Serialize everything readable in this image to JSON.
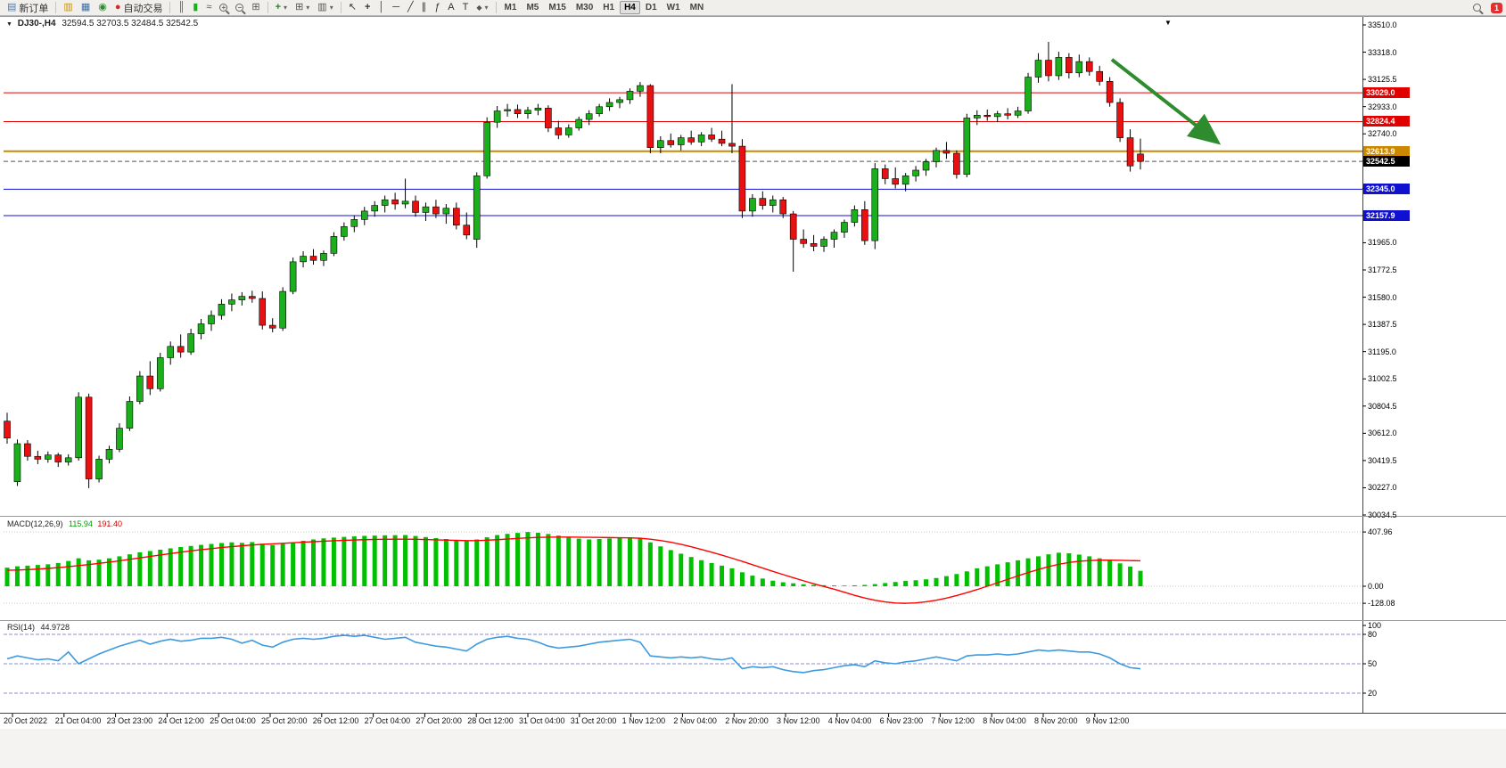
{
  "toolbar": {
    "new_order": "新订单",
    "autotrading": "自动交易",
    "timeframes": [
      "M1",
      "M5",
      "M15",
      "M30",
      "H1",
      "H4",
      "D1",
      "W1",
      "MN"
    ],
    "active_timeframe": "H4",
    "notification_badge": "1"
  },
  "icons": {
    "new_order": "▤",
    "chart_profile": "▥",
    "market_watch": "▦",
    "navigator": "◉",
    "autotrading_dot": "●",
    "bar_chart": "║",
    "candle_chart": "▮",
    "line_chart": "≈",
    "zoom_in_sign": "+",
    "zoom_out_sign": "−",
    "tile_windows": "⊞",
    "indicators_plus": "+",
    "dropdown": "▾",
    "cursor": "↖",
    "crosshair": "+",
    "vertical_line": "│",
    "horizontal_line": "─",
    "trendline": "╱",
    "channel": "∥",
    "fibonacci": "ƒ",
    "text_tool": "A",
    "label_tool": "T",
    "shapes": "◆",
    "symbol_dropdown": "▼",
    "scroll_marker": "▼"
  },
  "chart": {
    "symbol_period": "DJ30-,H4",
    "ohlc_text": "32594.5 32703.5 32484.5 32542.5",
    "macd_label": "MACD(12,26,9)",
    "macd_main_value": "115.94",
    "macd_signal_value": "191.40",
    "rsi_label": "RSI(14)",
    "rsi_value": "44.9728"
  },
  "chart_data": {
    "type": "candlestick",
    "symbol": "DJ30-",
    "timeframe": "H4",
    "last_candle": {
      "open": 32594.5,
      "high": 32703.5,
      "low": 32484.5,
      "close": 32542.5
    },
    "colors": {
      "up": "#1caf1c",
      "down": "#e81010",
      "wick": "#000000",
      "macd_hist": "#00c000",
      "macd_signal": "#ff0000",
      "rsi": "#3e9ade",
      "resistance": "#e00000",
      "key_level": "#cc8800",
      "support": "#1010d0"
    },
    "price_axis": {
      "max": 33510.0,
      "min": 30034.5,
      "labels": [
        "33510.0",
        "33318.0",
        "33125.5",
        "32933.0",
        "32740.0",
        "32548.0",
        "32355.0",
        "32162.5",
        "31965.0",
        "31772.5",
        "31580.0",
        "31387.5",
        "31195.0",
        "31002.5",
        "30804.5",
        "30612.0",
        "30419.5",
        "30227.0",
        "30034.5"
      ]
    },
    "hlines": [
      {
        "price": 33029.0,
        "label": "33029.0",
        "color": "#e00000",
        "width": 1
      },
      {
        "price": 32824.4,
        "label": "32824.4",
        "color": "#e00000",
        "width": 1
      },
      {
        "price": 32613.9,
        "label": "32613.9",
        "color": "#cc8800",
        "width": 2
      },
      {
        "price": 32345.0,
        "label": "32345.0",
        "color": "#1010d0",
        "width": 1
      },
      {
        "price": 32157.9,
        "label": "32157.9",
        "color": "#1010d0",
        "width": 1
      }
    ],
    "current_price": {
      "value": 32542.5,
      "label": "32542.5",
      "color": "#000000"
    },
    "candles": [
      [
        30700,
        30760,
        30540,
        30580
      ],
      [
        30270,
        30570,
        30240,
        30540
      ],
      [
        30540,
        30565,
        30420,
        30450
      ],
      [
        30450,
        30490,
        30395,
        30430
      ],
      [
        30430,
        30485,
        30405,
        30460
      ],
      [
        30460,
        30475,
        30375,
        30410
      ],
      [
        30410,
        30465,
        30385,
        30440
      ],
      [
        30440,
        30905,
        30420,
        30870
      ],
      [
        30870,
        30895,
        30225,
        30290
      ],
      [
        30290,
        30455,
        30265,
        30430
      ],
      [
        30430,
        30525,
        30400,
        30500
      ],
      [
        30500,
        30685,
        30480,
        30650
      ],
      [
        30650,
        30875,
        30630,
        30840
      ],
      [
        30840,
        31055,
        30820,
        31020
      ],
      [
        31020,
        31125,
        30885,
        30930
      ],
      [
        30930,
        31185,
        30910,
        31150
      ],
      [
        31150,
        31265,
        31100,
        31230
      ],
      [
        31230,
        31315,
        31150,
        31190
      ],
      [
        31190,
        31355,
        31170,
        31320
      ],
      [
        31320,
        31425,
        31280,
        31390
      ],
      [
        31390,
        31485,
        31340,
        31450
      ],
      [
        31450,
        31565,
        31420,
        31530
      ],
      [
        31530,
        31605,
        31480,
        31560
      ],
      [
        31560,
        31615,
        31520,
        31585
      ],
      [
        31585,
        31625,
        31540,
        31570
      ],
      [
        31570,
        31620,
        31350,
        31380
      ],
      [
        31380,
        31430,
        31330,
        31360
      ],
      [
        31360,
        31650,
        31340,
        31620
      ],
      [
        31620,
        31860,
        31600,
        31830
      ],
      [
        31830,
        31905,
        31790,
        31870
      ],
      [
        31870,
        31920,
        31810,
        31840
      ],
      [
        31840,
        31910,
        31800,
        31890
      ],
      [
        31890,
        32040,
        31870,
        32010
      ],
      [
        32010,
        32110,
        31980,
        32080
      ],
      [
        32080,
        32160,
        32040,
        32130
      ],
      [
        32130,
        32220,
        32090,
        32190
      ],
      [
        32190,
        32260,
        32150,
        32230
      ],
      [
        32230,
        32300,
        32180,
        32270
      ],
      [
        32270,
        32320,
        32200,
        32240
      ],
      [
        32240,
        32420,
        32210,
        32260
      ],
      [
        32260,
        32300,
        32150,
        32180
      ],
      [
        32180,
        32250,
        32120,
        32220
      ],
      [
        32220,
        32270,
        32140,
        32170
      ],
      [
        32170,
        32240,
        32100,
        32210
      ],
      [
        32210,
        32250,
        32060,
        32090
      ],
      [
        32090,
        32180,
        31990,
        32020
      ],
      [
        31990,
        32465,
        31930,
        32440
      ],
      [
        32440,
        32855,
        32420,
        32820
      ],
      [
        32820,
        32935,
        32780,
        32900
      ],
      [
        32900,
        32950,
        32860,
        32910
      ],
      [
        32910,
        32945,
        32850,
        32880
      ],
      [
        32880,
        32930,
        32845,
        32905
      ],
      [
        32905,
        32950,
        32870,
        32920
      ],
      [
        32920,
        32940,
        32750,
        32780
      ],
      [
        32780,
        32830,
        32700,
        32730
      ],
      [
        32730,
        32805,
        32710,
        32780
      ],
      [
        32780,
        32860,
        32760,
        32840
      ],
      [
        32840,
        32905,
        32800,
        32880
      ],
      [
        32880,
        32950,
        32860,
        32930
      ],
      [
        32930,
        32990,
        32900,
        32960
      ],
      [
        32960,
        33000,
        32920,
        32980
      ],
      [
        32980,
        33060,
        32950,
        33040
      ],
      [
        33040,
        33105,
        33000,
        33080
      ],
      [
        33080,
        33090,
        32600,
        32640
      ],
      [
        32640,
        32720,
        32600,
        32690
      ],
      [
        32690,
        32740,
        32640,
        32660
      ],
      [
        32660,
        32730,
        32620,
        32710
      ],
      [
        32710,
        32760,
        32660,
        32680
      ],
      [
        32680,
        32750,
        32650,
        32730
      ],
      [
        32730,
        32780,
        32680,
        32700
      ],
      [
        32700,
        32760,
        32650,
        32670
      ],
      [
        32670,
        33090,
        32600,
        32650
      ],
      [
        32650,
        32700,
        32140,
        32190
      ],
      [
        32190,
        32310,
        32150,
        32280
      ],
      [
        32280,
        32330,
        32200,
        32230
      ],
      [
        32230,
        32300,
        32180,
        32270
      ],
      [
        32270,
        32290,
        32140,
        32170
      ],
      [
        32170,
        32190,
        31760,
        31990
      ],
      [
        31990,
        32060,
        31930,
        31960
      ],
      [
        31960,
        32020,
        31905,
        31940
      ],
      [
        31940,
        32010,
        31900,
        31990
      ],
      [
        31990,
        32060,
        31930,
        32040
      ],
      [
        32040,
        32130,
        32000,
        32110
      ],
      [
        32110,
        32230,
        32080,
        32200
      ],
      [
        32200,
        32260,
        31950,
        31980
      ],
      [
        31980,
        32530,
        31920,
        32490
      ],
      [
        32490,
        32520,
        32380,
        32420
      ],
      [
        32420,
        32500,
        32350,
        32380
      ],
      [
        32380,
        32460,
        32330,
        32440
      ],
      [
        32440,
        32510,
        32400,
        32480
      ],
      [
        32480,
        32560,
        32440,
        32540
      ],
      [
        32540,
        32640,
        32500,
        32620
      ],
      [
        32620,
        32680,
        32560,
        32600
      ],
      [
        32600,
        32620,
        32420,
        32450
      ],
      [
        32450,
        32880,
        32430,
        32850
      ],
      [
        32850,
        32905,
        32800,
        32870
      ],
      [
        32870,
        32910,
        32830,
        32860
      ],
      [
        32860,
        32900,
        32820,
        32880
      ],
      [
        32880,
        32920,
        32840,
        32870
      ],
      [
        32870,
        32930,
        32850,
        32900
      ],
      [
        32900,
        33170,
        32880,
        33140
      ],
      [
        33140,
        33310,
        33100,
        33260
      ],
      [
        33260,
        33390,
        33110,
        33150
      ],
      [
        33150,
        33320,
        33120,
        33280
      ],
      [
        33280,
        33310,
        33130,
        33170
      ],
      [
        33170,
        33300,
        33140,
        33250
      ],
      [
        33250,
        33280,
        33150,
        33180
      ],
      [
        33180,
        33220,
        33080,
        33110
      ],
      [
        33110,
        33140,
        32930,
        32960
      ],
      [
        32960,
        32990,
        32680,
        32710
      ],
      [
        32710,
        32770,
        32470,
        32510
      ],
      [
        32594.5,
        32703.5,
        32484.5,
        32542.5
      ]
    ],
    "macd": {
      "params": "12,26,9",
      "histogram": [
        140,
        150,
        155,
        160,
        165,
        175,
        190,
        210,
        195,
        200,
        210,
        225,
        240,
        255,
        265,
        275,
        285,
        295,
        303,
        311,
        318,
        325,
        330,
        326,
        332,
        320,
        310,
        318,
        330,
        342,
        352,
        360,
        366,
        371,
        375,
        379,
        381,
        383,
        384,
        385,
        378,
        370,
        362,
        355,
        348,
        342,
        352,
        368,
        385,
        394,
        401,
        407.96,
        402,
        393,
        381,
        368,
        358,
        352,
        355,
        359,
        363,
        367,
        358,
        330,
        300,
        272,
        245,
        220,
        196,
        175,
        155,
        135,
        105,
        80,
        58,
        42,
        30,
        22,
        15,
        10,
        8,
        6,
        5,
        7,
        10,
        16,
        24,
        32,
        40,
        45,
        52,
        62,
        76,
        92,
        112,
        135,
        150,
        165,
        180,
        195,
        210,
        225,
        240,
        252,
        248,
        238,
        225,
        210,
        192,
        172,
        148,
        115.94
      ],
      "signal": [
        120,
        122,
        125,
        129,
        134,
        140,
        147,
        155,
        163,
        172,
        181,
        191,
        202,
        213,
        224,
        235,
        246,
        256,
        266,
        275,
        283,
        291,
        298,
        304,
        310,
        315,
        319,
        323,
        327,
        331,
        335,
        339,
        342,
        345,
        348,
        350,
        352,
        353,
        354,
        354,
        353,
        351,
        349,
        347,
        345,
        343,
        343,
        346,
        350,
        355,
        360,
        364,
        367,
        369,
        370,
        370,
        369,
        368,
        367,
        366,
        365,
        364,
        361,
        354,
        344,
        331,
        315,
        297,
        277,
        256,
        234,
        211,
        187,
        162,
        137,
        112,
        88,
        64,
        41,
        19,
        -2,
        -22,
        -45,
        -68,
        -88,
        -105,
        -118,
        -126,
        -128.08,
        -125,
        -117,
        -105,
        -89,
        -70,
        -48,
        -25,
        0,
        26,
        52,
        78,
        103,
        126,
        147,
        165,
        179,
        188,
        193,
        196,
        196,
        195,
        193,
        191.4
      ],
      "guides": [
        407.96,
        0,
        -128.08
      ],
      "axis_labels": [
        "407.96",
        "0.00",
        "-128.08"
      ]
    },
    "rsi": {
      "period": 14,
      "values": [
        55,
        58,
        56,
        54,
        55,
        53,
        62,
        50,
        55,
        60,
        64,
        68,
        71,
        74,
        70,
        73,
        75,
        73,
        74,
        76,
        76,
        77,
        75,
        71,
        74,
        69,
        67,
        72,
        75,
        76,
        75,
        76,
        78,
        79,
        78,
        79,
        77,
        75,
        76,
        77,
        72,
        70,
        68,
        67,
        65,
        63,
        70,
        75,
        77,
        78,
        76,
        75,
        72,
        68,
        66,
        67,
        68,
        70,
        72,
        73,
        74,
        75,
        72,
        58,
        57,
        56,
        57,
        56,
        57,
        55,
        54,
        56,
        45,
        47,
        46,
        47,
        44,
        42,
        41,
        43,
        44,
        46,
        48,
        49,
        47,
        53,
        51,
        50,
        52,
        53,
        55,
        57,
        55,
        53,
        58,
        59,
        59,
        60,
        59,
        60,
        62,
        64,
        63,
        64,
        63,
        62,
        62,
        60,
        56,
        50,
        46,
        44.97
      ],
      "levels": [
        80,
        50,
        20
      ],
      "axis_labels": [
        "100",
        "80",
        "50",
        "20"
      ]
    },
    "x_labels": [
      "20 Oct 2022",
      "21 Oct 04:00",
      "23 Oct 23:00",
      "24 Oct 12:00",
      "25 Oct 04:00",
      "25 Oct 20:00",
      "26 Oct 12:00",
      "27 Oct 04:00",
      "27 Oct 20:00",
      "28 Oct 12:00",
      "31 Oct 04:00",
      "31 Oct 20:00",
      "1 Nov 12:00",
      "2 Nov 04:00",
      "2 Nov 20:00",
      "3 Nov 12:00",
      "4 Nov 04:00",
      "6 Nov 23:00",
      "7 Nov 12:00",
      "8 Nov 04:00",
      "8 Nov 20:00",
      "9 Nov 12:00"
    ],
    "annotation_arrow": {
      "from_index": 108.2,
      "from_price": 33265,
      "to_index": 118.6,
      "to_price": 32676,
      "color": "#2e8b2e"
    }
  }
}
